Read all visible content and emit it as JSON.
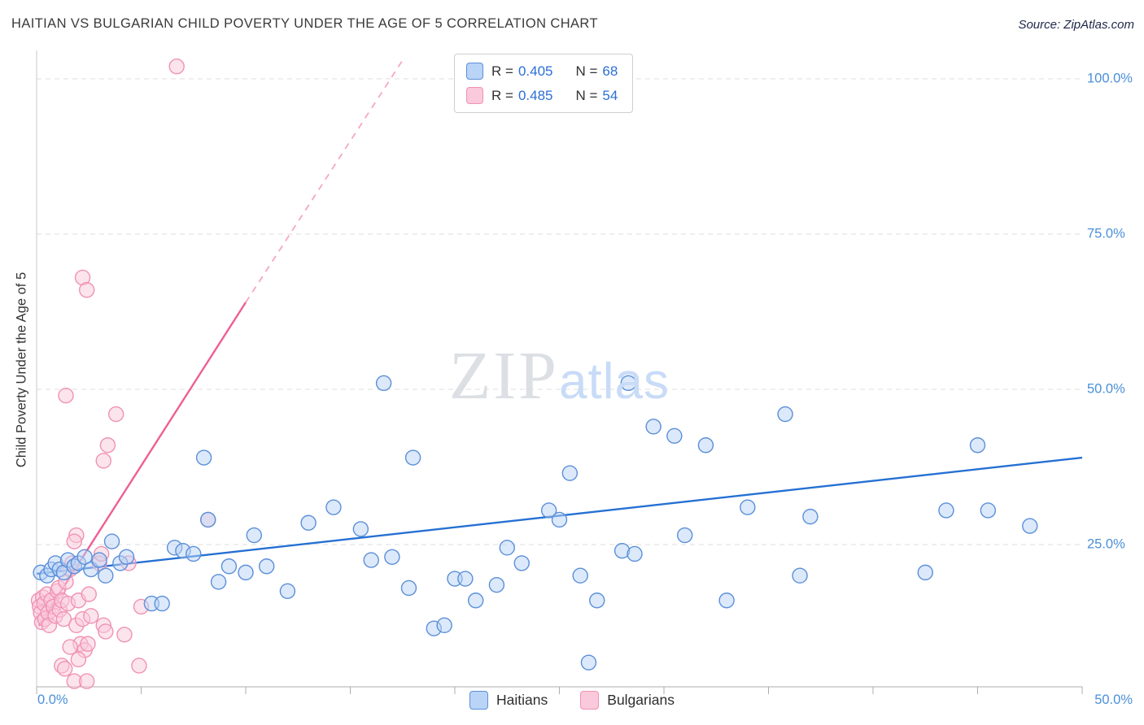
{
  "header": {
    "title": "HAITIAN VS BULGARIAN CHILD POVERTY UNDER THE AGE OF 5 CORRELATION CHART",
    "source": "Source: ZipAtlas.com"
  },
  "watermark": {
    "zip": "ZIP",
    "atlas": "atlas"
  },
  "chart_data": {
    "type": "scatter",
    "title": "Haitian vs Bulgarian Child Poverty Under the Age of 5 Correlation Chart",
    "ylabel": "Child Poverty Under the Age of 5",
    "x_axis": {
      "min": 0,
      "max": 50,
      "min_label": "0.0%",
      "max_label": "50.0%",
      "tick_step": 5
    },
    "y_axis": {
      "max": 100,
      "values": [
        100,
        75,
        50,
        25
      ],
      "labels": [
        "100.0%",
        "75.0%",
        "50.0%",
        "25.0%"
      ]
    },
    "grid": "dashed-horizontal",
    "legend_position": "top-center",
    "legend": [
      {
        "r_prefix": "R =",
        "r_value": "0.405",
        "n_prefix": "N =",
        "n_value": "68"
      },
      {
        "r_prefix": "R =",
        "r_value": "0.485",
        "n_prefix": "N =",
        "n_value": "54"
      }
    ],
    "series": [
      {
        "name": "Haitians",
        "R": 0.405,
        "N": 68,
        "fill": "#b9d4f6",
        "stroke": "#5b8fd9",
        "line_color": "#2570d4",
        "trend": {
          "solid": [
            [
              0,
              20.3
            ],
            [
              50,
              39.0
            ]
          ]
        },
        "points": [
          [
            0.2,
            20.5
          ],
          [
            0.5,
            20.0
          ],
          [
            0.7,
            21.0
          ],
          [
            0.9,
            22.0
          ],
          [
            1.1,
            21.0
          ],
          [
            1.3,
            20.5
          ],
          [
            1.5,
            22.5
          ],
          [
            1.8,
            21.5
          ],
          [
            2.0,
            22.0
          ],
          [
            2.3,
            23.0
          ],
          [
            2.6,
            21.0
          ],
          [
            3.0,
            22.5
          ],
          [
            3.3,
            20.0
          ],
          [
            3.6,
            25.5
          ],
          [
            4.0,
            22.0
          ],
          [
            4.3,
            23.0
          ],
          [
            5.5,
            15.5
          ],
          [
            6.0,
            15.5
          ],
          [
            6.6,
            24.5
          ],
          [
            7.0,
            24.0
          ],
          [
            7.5,
            23.5
          ],
          [
            8.0,
            39.0
          ],
          [
            8.2,
            29.0
          ],
          [
            8.7,
            19.0
          ],
          [
            9.2,
            21.5
          ],
          [
            10.0,
            20.5
          ],
          [
            10.4,
            26.5
          ],
          [
            11.0,
            21.5
          ],
          [
            12.0,
            17.5
          ],
          [
            13.0,
            28.5
          ],
          [
            14.2,
            31.0
          ],
          [
            15.5,
            27.5
          ],
          [
            16.0,
            22.5
          ],
          [
            16.6,
            51.0
          ],
          [
            17.0,
            23.0
          ],
          [
            17.8,
            18.0
          ],
          [
            18.0,
            39.0
          ],
          [
            19.0,
            11.5
          ],
          [
            19.5,
            12.0
          ],
          [
            20.0,
            19.5
          ],
          [
            20.5,
            19.5
          ],
          [
            21.0,
            16.0
          ],
          [
            22.0,
            18.5
          ],
          [
            22.5,
            24.5
          ],
          [
            23.2,
            22.0
          ],
          [
            24.5,
            30.5
          ],
          [
            25.0,
            29.0
          ],
          [
            25.5,
            36.5
          ],
          [
            26.0,
            20.0
          ],
          [
            26.4,
            6.0
          ],
          [
            26.8,
            16.0
          ],
          [
            28.0,
            24.0
          ],
          [
            28.3,
            51.0
          ],
          [
            28.6,
            23.5
          ],
          [
            29.5,
            44.0
          ],
          [
            30.5,
            42.5
          ],
          [
            31.0,
            26.5
          ],
          [
            32.0,
            41.0
          ],
          [
            33.0,
            16.0
          ],
          [
            34.0,
            31.0
          ],
          [
            35.8,
            46.0
          ],
          [
            36.5,
            20.0
          ],
          [
            37.0,
            29.5
          ],
          [
            42.5,
            20.5
          ],
          [
            43.5,
            30.5
          ],
          [
            45.0,
            41.0
          ],
          [
            45.5,
            30.5
          ],
          [
            47.5,
            28.0
          ]
        ]
      },
      {
        "name": "Bulgarians",
        "R": 0.485,
        "N": 54,
        "fill": "#fac9db",
        "stroke": "#f092b3",
        "line_color": "#ee5f94",
        "trend": {
          "solid": [
            [
              0.1,
              11.9
            ],
            [
              10.0,
              64.0
            ]
          ],
          "dashed": [
            [
              10.0,
              64.0
            ],
            [
              17.6,
              103.5
            ]
          ]
        },
        "points": [
          [
            6.7,
            102.0
          ],
          [
            2.2,
            68.0
          ],
          [
            2.4,
            66.0
          ],
          [
            1.4,
            49.0
          ],
          [
            3.8,
            46.0
          ],
          [
            3.4,
            41.0
          ],
          [
            3.2,
            38.5
          ],
          [
            8.2,
            29.0
          ],
          [
            1.9,
            26.5
          ],
          [
            1.8,
            25.5
          ],
          [
            0.1,
            16.0
          ],
          [
            0.15,
            15.0
          ],
          [
            0.2,
            14.0
          ],
          [
            0.25,
            12.5
          ],
          [
            0.3,
            16.5
          ],
          [
            0.35,
            15.5
          ],
          [
            0.4,
            13.0
          ],
          [
            0.5,
            17.0
          ],
          [
            0.55,
            14.0
          ],
          [
            0.6,
            12.0
          ],
          [
            0.7,
            16.0
          ],
          [
            0.8,
            15.0
          ],
          [
            0.9,
            13.5
          ],
          [
            1.0,
            17.5
          ],
          [
            1.05,
            18.0
          ],
          [
            1.1,
            14.5
          ],
          [
            1.2,
            16.0
          ],
          [
            1.3,
            13.0
          ],
          [
            1.4,
            19.0
          ],
          [
            1.5,
            15.5
          ],
          [
            1.6,
            21.0
          ],
          [
            1.7,
            22.0
          ],
          [
            1.9,
            12.0
          ],
          [
            2.0,
            16.0
          ],
          [
            2.1,
            9.0
          ],
          [
            2.2,
            13.0
          ],
          [
            2.5,
            17.0
          ],
          [
            2.6,
            13.5
          ],
          [
            3.0,
            22.0
          ],
          [
            3.1,
            23.5
          ],
          [
            1.2,
            5.5
          ],
          [
            1.35,
            5.0
          ],
          [
            1.8,
            3.0
          ],
          [
            2.3,
            8.0
          ],
          [
            2.45,
            9.0
          ],
          [
            3.2,
            12.0
          ],
          [
            3.3,
            11.0
          ],
          [
            2.0,
            6.5
          ],
          [
            4.2,
            10.5
          ],
          [
            5.0,
            15.0
          ],
          [
            4.4,
            22.0
          ],
          [
            4.9,
            5.5
          ],
          [
            2.4,
            3.0
          ],
          [
            1.6,
            8.5
          ]
        ]
      }
    ]
  }
}
